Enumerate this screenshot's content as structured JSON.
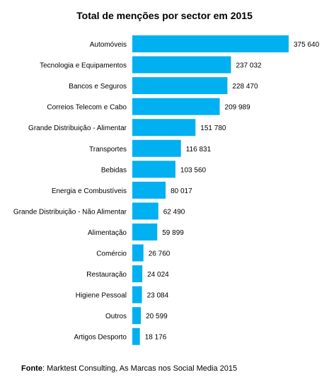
{
  "chart_data": {
    "type": "bar",
    "orientation": "horizontal",
    "title": "Total de menções por sector em 2015",
    "categories": [
      "Automóveis",
      "Tecnologia e Equipamentos",
      "Bancos e Seguros",
      "Correios Telecom e Cabo",
      "Grande Distribuição - Alimentar",
      "Transportes",
      "Bebidas",
      "Energia e Combustíveis",
      "Grande Distribuição - Não Alimentar",
      "Alimentação",
      "Comércio",
      "Restauração",
      "Higiene Pessoal",
      "Outros",
      "Artigos Desporto"
    ],
    "values": [
      375640,
      237032,
      228470,
      209989,
      151780,
      116831,
      103560,
      80017,
      62490,
      59899,
      26760,
      24024,
      23084,
      20599,
      18176
    ],
    "value_labels": [
      "375 640",
      "237 032",
      "228 470",
      "209 989",
      "151 780",
      "116 831",
      "103 560",
      "80 017",
      "62 490",
      "59 899",
      "26 760",
      "24 024",
      "23 084",
      "20 599",
      "18 176"
    ],
    "xlabel": "",
    "ylabel": "",
    "xlim": [
      0,
      375640
    ],
    "grid": false,
    "legend": "none",
    "bar_color": "#00b0f0"
  },
  "footer": {
    "source_label": "Fonte",
    "source_text": ": Marktest Consulting, As Marcas nos Social Media 2015"
  }
}
